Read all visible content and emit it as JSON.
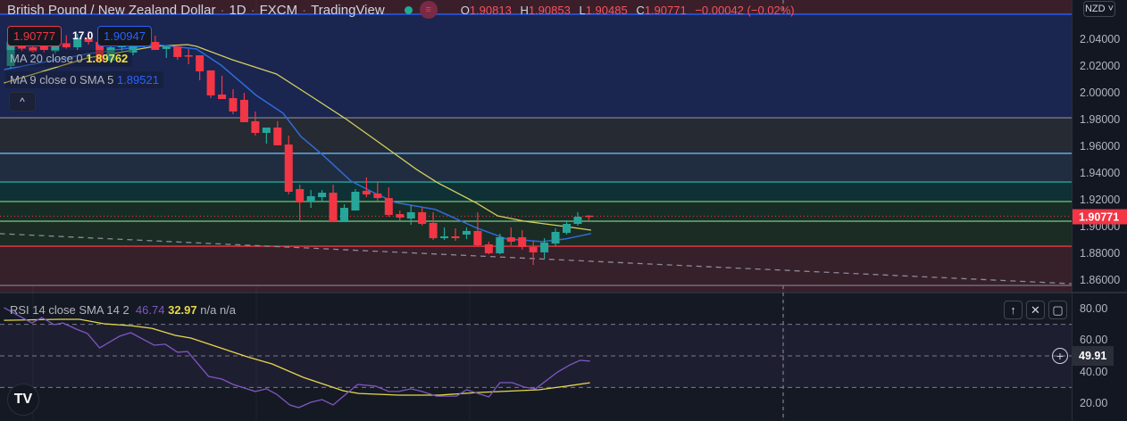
{
  "header": {
    "symbol": "British Pound / New Zealand Dollar",
    "interval": "1D",
    "exchange": "FXCM",
    "source": "TradingView",
    "ohlc": {
      "o_label": "O",
      "o": "1.90813",
      "h_label": "H",
      "h": "1.90853",
      "l_label": "L",
      "l": "1.90485",
      "c_label": "C",
      "c": "1.90771",
      "change": "−0.00042 (−0.02%)"
    }
  },
  "trade_panel": {
    "sell_price": "1.90777",
    "spread": "17.0",
    "buy_price": "1.90947"
  },
  "indicators": [
    {
      "label": "MA 20 close 0",
      "value": "1.89762",
      "color": "#f0e442"
    },
    {
      "label": "MA 9 close 0 SMA 5",
      "value": "1.89521",
      "color": "#2962ff"
    }
  ],
  "collapse_button": "^",
  "currency_selector": "NZD",
  "price_axis": {
    "ticks": [
      "2.04000",
      "2.02000",
      "2.00000",
      "1.98000",
      "1.96000",
      "1.94000",
      "1.92000",
      "1.90000",
      "1.88000",
      "1.86000"
    ],
    "current_price": "1.90771"
  },
  "rsi": {
    "label": "RSI 14 close SMA 14 2",
    "value": "46.74",
    "sma_value": "32.97",
    "extra": "n/a n/a",
    "axis_ticks": [
      "80.00",
      "60.00",
      "40.00",
      "20.00"
    ],
    "crosshair_value": "49.91"
  },
  "pane_buttons": {
    "up": "↑",
    "close": "✕",
    "maximize": "▢"
  },
  "logo_text": "TV",
  "colors": {
    "up": "#26a69a",
    "down": "#f23645",
    "ma20": "#d4cf5a",
    "ma9": "#2f6bd8",
    "rsi": "#7e57c2",
    "rsi_sma": "#e6d84a"
  },
  "chart_data": {
    "type": "candlestick",
    "ylim": [
      1.856,
      2.069
    ],
    "fib_levels": [
      {
        "price": 2.0587,
        "color": "#2962ff",
        "fill": "#1a2550"
      },
      {
        "price": 1.9813,
        "color": "#787b86",
        "fill": "#262a33"
      },
      {
        "price": 1.9547,
        "color": "#64b5f6",
        "fill": "#202d40"
      },
      {
        "price": 1.9333,
        "color": "#26a69a",
        "fill": "#0f3035"
      },
      {
        "price": 1.9187,
        "color": "#66bb6a",
        "fill": "#182c26"
      },
      {
        "price": 1.904,
        "color": "#81c784",
        "fill": "#1a2c24"
      },
      {
        "price": 1.8853,
        "color": "#f23645",
        "fill": "#36202a"
      },
      {
        "price": 1.856,
        "color": "#787b86",
        "fill": null
      }
    ],
    "trendline": {
      "from": [
        -1,
        1.8947
      ],
      "to": [
        95.4,
        1.8573
      ]
    },
    "candles": [
      [
        2.02,
        2.041,
        2.018,
        2.038
      ],
      [
        2.038,
        2.042,
        2.031,
        2.033
      ],
      [
        2.034,
        2.04,
        2.03,
        2.031
      ],
      [
        2.035,
        2.038,
        2.03,
        2.032
      ],
      [
        2.031,
        2.04,
        2.029,
        2.037
      ],
      [
        2.037,
        2.043,
        2.033,
        2.034
      ],
      [
        2.034,
        2.044,
        2.032,
        2.041
      ],
      [
        2.041,
        2.046,
        2.036,
        2.038
      ],
      [
        2.038,
        2.04,
        2.022,
        2.024
      ],
      [
        2.024,
        2.036,
        2.022,
        2.034
      ],
      [
        2.034,
        2.041,
        2.031,
        2.038
      ],
      [
        2.03,
        2.04,
        2.028,
        2.037
      ],
      [
        2.037,
        2.042,
        2.034,
        2.04
      ],
      [
        2.038,
        2.0427,
        2.032,
        2.032
      ],
      [
        2.0327,
        2.0347,
        2.026,
        2.0347
      ],
      [
        2.0347,
        2.0347,
        2.0247,
        2.0267
      ],
      [
        2.028,
        2.0327,
        2.0213,
        2.0273
      ],
      [
        2.028,
        2.028,
        2.0093,
        2.016
      ],
      [
        2.0167,
        2.0167,
        1.996,
        1.998
      ],
      [
        1.9987,
        2.0127,
        1.9953,
        1.9953
      ],
      [
        1.996,
        2.0027,
        1.984,
        1.986
      ],
      [
        1.9947,
        2.0,
        1.978,
        1.978
      ],
      [
        1.9787,
        1.986,
        1.968,
        1.97
      ],
      [
        1.97,
        1.974,
        1.962,
        1.974
      ],
      [
        1.974,
        1.9787,
        1.9607,
        1.9607
      ],
      [
        1.9613,
        1.968,
        1.924,
        1.926
      ],
      [
        1.928,
        1.9313,
        1.904,
        1.918
      ],
      [
        1.9187,
        1.9273,
        1.914,
        1.9227
      ],
      [
        1.922,
        1.9273,
        1.9193,
        1.9253
      ],
      [
        1.9253,
        1.9313,
        1.9033,
        1.9033
      ],
      [
        1.9033,
        1.9167,
        1.9033,
        1.914
      ],
      [
        1.912,
        1.928,
        1.912,
        1.926
      ],
      [
        1.9267,
        1.9367,
        1.922,
        1.924
      ],
      [
        1.9247,
        1.934,
        1.9193,
        1.9213
      ],
      [
        1.9213,
        1.9293,
        1.9073,
        1.9087
      ],
      [
        1.9093,
        1.912,
        1.9047,
        1.9067
      ],
      [
        1.906,
        1.916,
        1.9013,
        1.9107
      ],
      [
        1.9107,
        1.9147,
        1.9007,
        1.902
      ],
      [
        1.9027,
        1.9107,
        1.89,
        1.8913
      ],
      [
        1.8913,
        1.8993,
        1.89,
        1.8927
      ],
      [
        1.8927,
        1.8987,
        1.8893,
        1.8913
      ],
      [
        1.894,
        1.8993,
        1.8907,
        1.8967
      ],
      [
        1.8967,
        1.9107,
        1.8853,
        1.886
      ],
      [
        1.8867,
        1.8887,
        1.8793,
        1.88
      ],
      [
        1.88,
        1.8947,
        1.8793,
        1.892
      ],
      [
        1.892,
        1.8993,
        1.886,
        1.8887
      ],
      [
        1.892,
        1.8973,
        1.8827,
        1.8847
      ],
      [
        1.8847,
        1.8893,
        1.8713,
        1.8807
      ],
      [
        1.8807,
        1.8913,
        1.876,
        1.888
      ],
      [
        1.8873,
        1.8987,
        1.8853,
        1.896
      ],
      [
        1.8953,
        1.9047,
        1.894,
        1.902
      ],
      [
        1.902,
        1.9107,
        1.9007,
        1.9073
      ],
      [
        1.90813,
        1.90853,
        1.90485,
        1.90771
      ]
    ],
    "ma20": [
      [
        -0.6,
        2.0073
      ],
      [
        6.9,
        2.026
      ],
      [
        13,
        2.0347
      ],
      [
        15.9,
        2.036
      ],
      [
        16.7,
        2.0347
      ],
      [
        19.9,
        2.0247
      ],
      [
        23.9,
        2.014
      ],
      [
        26.9,
        1.998
      ],
      [
        30.1,
        1.9807
      ],
      [
        32.8,
        1.9647
      ],
      [
        36.5,
        1.9427
      ],
      [
        38.4,
        1.9327
      ],
      [
        41.8,
        1.918
      ],
      [
        43.8,
        1.908
      ],
      [
        46.2,
        1.904
      ],
      [
        49.9,
        1.9
      ],
      [
        52.2,
        1.8973
      ]
    ],
    "ma9": [
      [
        -0.6,
        2.0173
      ],
      [
        7.1,
        2.0293
      ],
      [
        13,
        2.036
      ],
      [
        16.7,
        2.0327
      ],
      [
        18.9,
        2.0207
      ],
      [
        22.1,
        1.998
      ],
      [
        24.5,
        1.9847
      ],
      [
        26.1,
        1.9673
      ],
      [
        28,
        1.954
      ],
      [
        30.6,
        1.934
      ],
      [
        32.8,
        1.9247
      ],
      [
        34.6,
        1.918
      ],
      [
        38.2,
        1.9127
      ],
      [
        41.8,
        1.8993
      ],
      [
        44.6,
        1.8907
      ],
      [
        47.8,
        1.8887
      ],
      [
        49.9,
        1.8907
      ],
      [
        52.2,
        1.8947
      ]
    ],
    "rsi_ylim": [
      20,
      80
    ],
    "rsi_bands": [
      70,
      50,
      30
    ],
    "rsi_line": [
      [
        -0.6,
        80.6
      ],
      [
        1.9,
        70.9
      ],
      [
        2.8,
        74.3
      ],
      [
        3.9,
        69.8
      ],
      [
        4.7,
        70.9
      ],
      [
        5.9,
        67
      ],
      [
        6.9,
        64.2
      ],
      [
        8,
        55.1
      ],
      [
        9.8,
        62.5
      ],
      [
        10.8,
        64.7
      ],
      [
        12.9,
        56.8
      ],
      [
        13.9,
        57.4
      ],
      [
        15,
        52.3
      ],
      [
        15.9,
        52.8
      ],
      [
        17.8,
        37
      ],
      [
        19,
        35.3
      ],
      [
        20,
        31.9
      ],
      [
        22,
        27.4
      ],
      [
        23,
        29.1
      ],
      [
        23.9,
        25.7
      ],
      [
        25.1,
        18.9
      ],
      [
        25.9,
        17.2
      ],
      [
        27,
        20.6
      ],
      [
        28,
        22.3
      ],
      [
        29,
        18.9
      ],
      [
        31.2,
        31.9
      ],
      [
        32.8,
        30.8
      ],
      [
        34,
        27.4
      ],
      [
        34.9,
        27.4
      ],
      [
        36,
        29.1
      ],
      [
        37,
        27.4
      ],
      [
        38.3,
        24.5
      ],
      [
        40.1,
        24.5
      ],
      [
        41,
        28.5
      ],
      [
        43,
        24
      ],
      [
        44,
        33
      ],
      [
        45.1,
        33
      ],
      [
        46.2,
        30.2
      ],
      [
        47.2,
        29.1
      ],
      [
        49.2,
        39.8
      ],
      [
        50.3,
        44.3
      ],
      [
        51.2,
        47.2
      ],
      [
        52.1,
        46.74
      ]
    ],
    "rsi_sma": [
      [
        -0.6,
        72.6
      ],
      [
        4.4,
        73.2
      ],
      [
        6.2,
        73.2
      ],
      [
        8.4,
        70.4
      ],
      [
        10.8,
        69.2
      ],
      [
        12.7,
        67.5
      ],
      [
        14.8,
        63
      ],
      [
        16.2,
        61.3
      ],
      [
        18.4,
        56.2
      ],
      [
        21.3,
        49.4
      ],
      [
        23.5,
        44.9
      ],
      [
        26.3,
        36.4
      ],
      [
        29.9,
        27.9
      ],
      [
        31.3,
        26.2
      ],
      [
        34.9,
        25.1
      ],
      [
        38.5,
        25.1
      ],
      [
        42.1,
        26.8
      ],
      [
        47.5,
        28.5
      ],
      [
        50,
        30.8
      ],
      [
        52.1,
        32.97
      ]
    ]
  }
}
